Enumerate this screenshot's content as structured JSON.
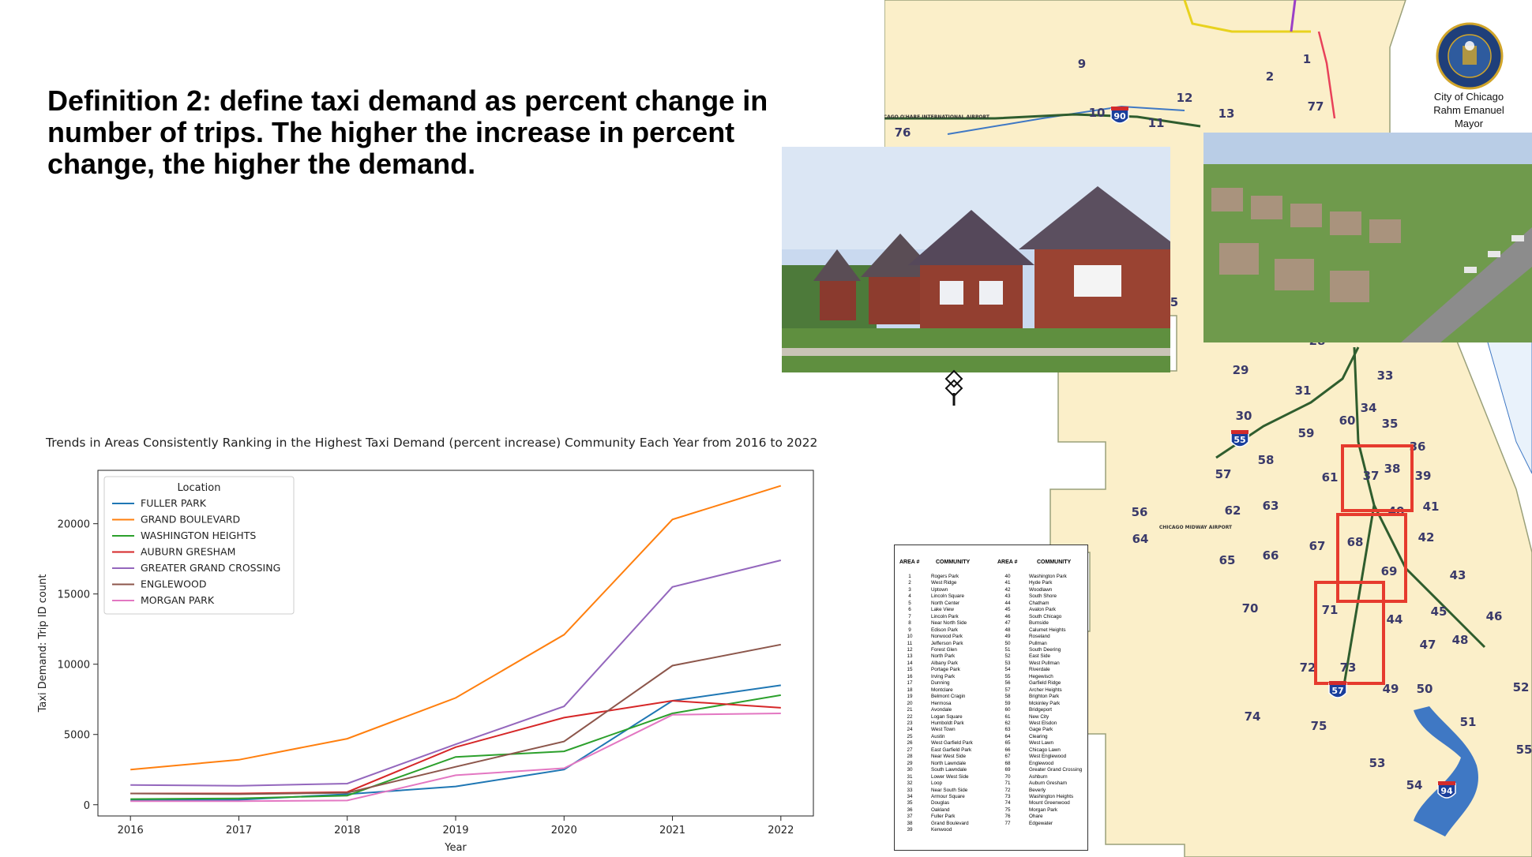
{
  "slide": {
    "heading": "Definition 2: define taxi demand as percent change in number of trips. The higher the increase in percent change, the higher the demand."
  },
  "map": {
    "seal_caption_lines": [
      "City of Chicago",
      "Rahm Emanuel",
      "Mayor"
    ],
    "colors": {
      "land": "#fbefc9",
      "water": "#3f78c4",
      "highway": "#2f5d2e",
      "highlight": "#e63b2e"
    },
    "visible_area_numbers": [
      "1",
      "2",
      "5",
      "9",
      "10",
      "11",
      "12",
      "13",
      "28",
      "29",
      "30",
      "31",
      "33",
      "34",
      "35",
      "36",
      "37",
      "38",
      "39",
      "40",
      "41",
      "42",
      "43",
      "44",
      "45",
      "46",
      "47",
      "48",
      "49",
      "50",
      "51",
      "52",
      "53",
      "54",
      "55",
      "56",
      "57",
      "58",
      "59",
      "60",
      "61",
      "62",
      "63",
      "64",
      "65",
      "66",
      "67",
      "68",
      "69",
      "70",
      "71",
      "72",
      "73",
      "74",
      "75",
      "76",
      "77"
    ],
    "highway_shields": [
      "90",
      "55",
      "57",
      "94"
    ],
    "place_labels": [
      "CHICAGO O'HARE INTERNATIONAL AIRPORT",
      "CHICAGO MIDWAY AIRPORT"
    ],
    "highlighted_areas": [
      "37",
      "38",
      "40",
      "68",
      "69",
      "71",
      "73"
    ]
  },
  "community_table": {
    "headers": [
      "AREA #",
      "COMMUNITY",
      "AREA #",
      "COMMUNITY"
    ],
    "left": [
      [
        "1",
        "Rogers Park"
      ],
      [
        "2",
        "West Ridge"
      ],
      [
        "3",
        "Uptown"
      ],
      [
        "4",
        "Lincoln Square"
      ],
      [
        "5",
        "North Center"
      ],
      [
        "6",
        "Lake View"
      ],
      [
        "7",
        "Lincoln Park"
      ],
      [
        "8",
        "Near North Side"
      ],
      [
        "9",
        "Edison Park"
      ],
      [
        "10",
        "Norwood Park"
      ],
      [
        "11",
        "Jefferson Park"
      ],
      [
        "12",
        "Forest Glen"
      ],
      [
        "13",
        "North Park"
      ],
      [
        "14",
        "Albany Park"
      ],
      [
        "15",
        "Portage Park"
      ],
      [
        "16",
        "Irving Park"
      ],
      [
        "17",
        "Dunning"
      ],
      [
        "18",
        "Montclare"
      ],
      [
        "19",
        "Belmont Cragin"
      ],
      [
        "20",
        "Hermosa"
      ],
      [
        "21",
        "Avondale"
      ],
      [
        "22",
        "Logan Square"
      ],
      [
        "23",
        "Humboldt Park"
      ],
      [
        "24",
        "West Town"
      ],
      [
        "25",
        "Austin"
      ],
      [
        "26",
        "West Garfield Park"
      ],
      [
        "27",
        "East Garfield Park"
      ],
      [
        "28",
        "Near West Side"
      ],
      [
        "29",
        "North Lawndale"
      ],
      [
        "30",
        "South Lawndale"
      ],
      [
        "31",
        "Lower West Side"
      ],
      [
        "32",
        "Loop"
      ],
      [
        "33",
        "Near South Side"
      ],
      [
        "34",
        "Armour Square"
      ],
      [
        "35",
        "Douglas"
      ],
      [
        "36",
        "Oakland"
      ],
      [
        "37",
        "Fuller Park"
      ],
      [
        "38",
        "Grand Boulevard"
      ],
      [
        "39",
        "Kenwood"
      ]
    ],
    "right": [
      [
        "40",
        "Washington Park"
      ],
      [
        "41",
        "Hyde Park"
      ],
      [
        "42",
        "Woodlawn"
      ],
      [
        "43",
        "South Shore"
      ],
      [
        "44",
        "Chatham"
      ],
      [
        "45",
        "Avalon Park"
      ],
      [
        "46",
        "South Chicago"
      ],
      [
        "47",
        "Burnside"
      ],
      [
        "48",
        "Calumet Heights"
      ],
      [
        "49",
        "Roseland"
      ],
      [
        "50",
        "Pullman"
      ],
      [
        "51",
        "South Deering"
      ],
      [
        "52",
        "East Side"
      ],
      [
        "53",
        "West Pullman"
      ],
      [
        "54",
        "Riverdale"
      ],
      [
        "55",
        "Hegewisch"
      ],
      [
        "56",
        "Garfield Ridge"
      ],
      [
        "57",
        "Archer Heights"
      ],
      [
        "58",
        "Brighton Park"
      ],
      [
        "59",
        "Mckinley Park"
      ],
      [
        "60",
        "Bridgeport"
      ],
      [
        "61",
        "New City"
      ],
      [
        "62",
        "West Elsdon"
      ],
      [
        "63",
        "Gage Park"
      ],
      [
        "64",
        "Clearing"
      ],
      [
        "65",
        "West Lawn"
      ],
      [
        "66",
        "Chicago Lawn"
      ],
      [
        "67",
        "West Englewood"
      ],
      [
        "68",
        "Englewood"
      ],
      [
        "69",
        "Greater Grand Crossing"
      ],
      [
        "70",
        "Ashburn"
      ],
      [
        "71",
        "Auburn Gresham"
      ],
      [
        "72",
        "Beverly"
      ],
      [
        "73",
        "Washington Heights"
      ],
      [
        "74",
        "Mount Greenwood"
      ],
      [
        "75",
        "Morgan Park"
      ],
      [
        "76",
        "Ohare"
      ],
      [
        "77",
        "Edgewater"
      ]
    ]
  },
  "chart_data": {
    "type": "line",
    "title": "Trends in Areas Consistently Ranking in the Highest Taxi Demand (percent increase) Community Each Year from 2016 to 2022",
    "xlabel": "Year",
    "ylabel": "Taxi Demand: Trip ID count",
    "x": [
      2016,
      2017,
      2018,
      2019,
      2020,
      2021,
      2022
    ],
    "xlim": [
      2015.7,
      2022.3
    ],
    "ylim": [
      -800,
      23800
    ],
    "yticks": [
      0,
      5000,
      10000,
      15000,
      20000
    ],
    "grid": false,
    "legend": {
      "title": "Location",
      "position": "top-left"
    },
    "series": [
      {
        "name": "FULLER PARK",
        "color": "#1f77b4",
        "values": [
          300,
          350,
          750,
          1300,
          2500,
          7400,
          8500
        ]
      },
      {
        "name": "GRAND BOULEVARD",
        "color": "#ff7f0e",
        "values": [
          2500,
          3200,
          4700,
          7600,
          12100,
          20300,
          22700
        ]
      },
      {
        "name": "WASHINGTON HEIGHTS",
        "color": "#2ca02c",
        "values": [
          400,
          450,
          650,
          3400,
          3800,
          6500,
          7800
        ]
      },
      {
        "name": "AUBURN GRESHAM",
        "color": "#d62728",
        "values": [
          800,
          800,
          900,
          4100,
          6200,
          7400,
          6900
        ]
      },
      {
        "name": "GREATER GRAND CROSSING",
        "color": "#9467bd",
        "values": [
          1400,
          1350,
          1500,
          4300,
          7000,
          15500,
          17400
        ]
      },
      {
        "name": "ENGLEWOOD",
        "color": "#8c564b",
        "values": [
          800,
          750,
          850,
          2700,
          4500,
          9900,
          11400
        ]
      },
      {
        "name": "MORGAN PARK",
        "color": "#e377c2",
        "values": [
          250,
          250,
          300,
          2100,
          2600,
          6400,
          6500
        ]
      }
    ]
  }
}
